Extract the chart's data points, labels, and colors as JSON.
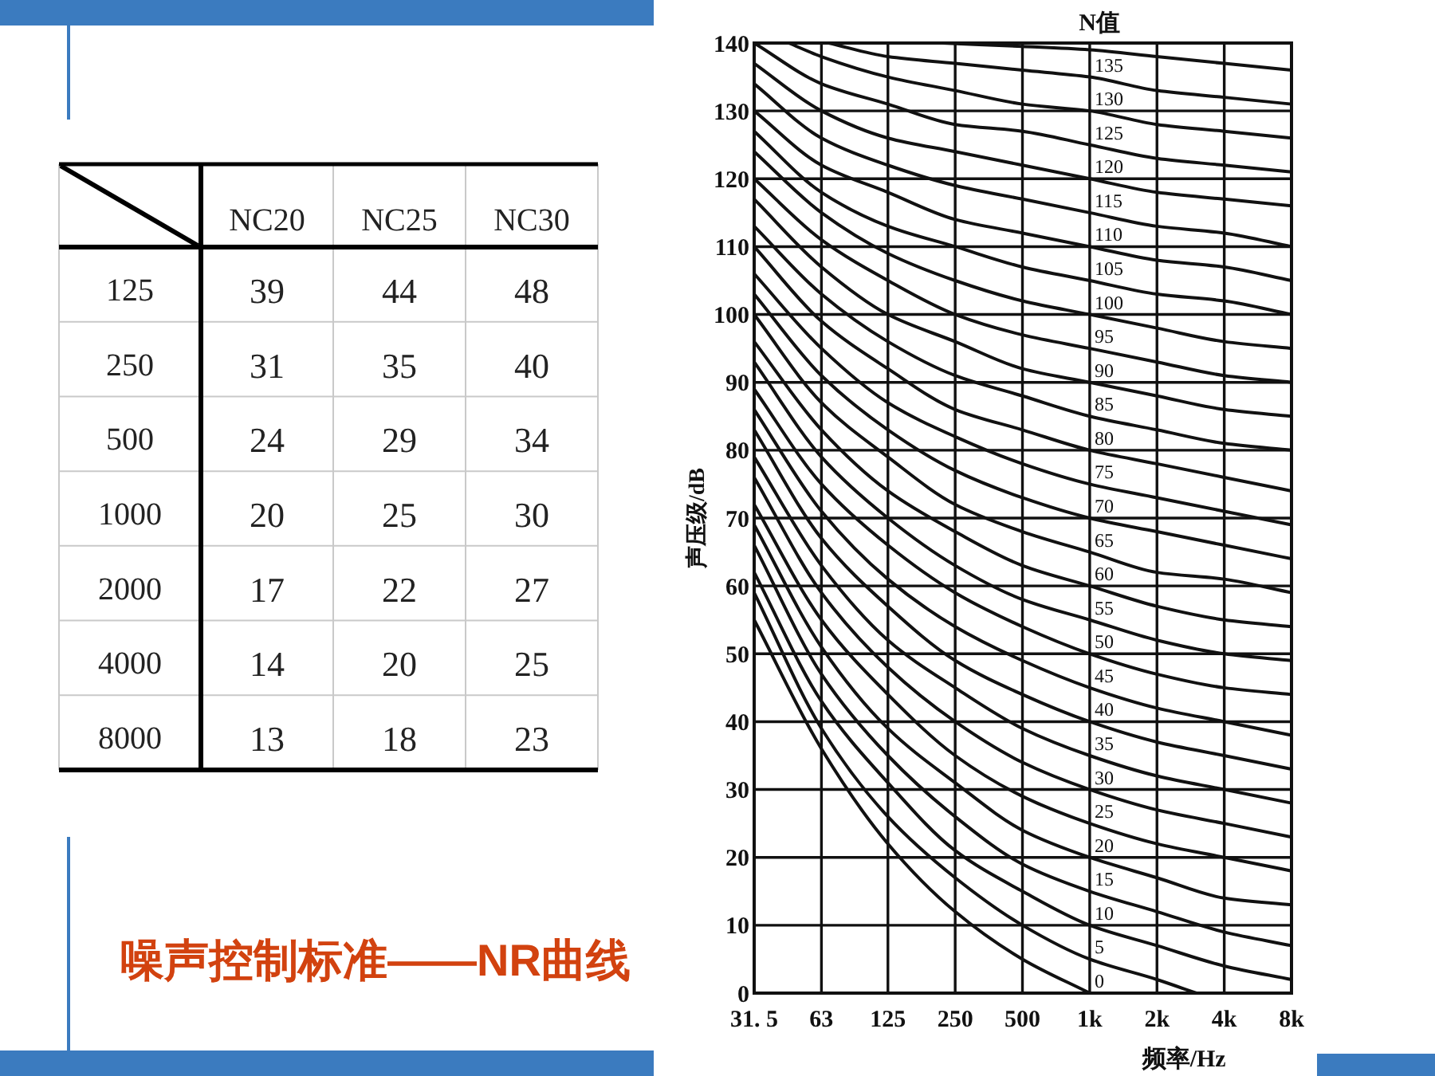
{
  "chart_data": [
    {
      "type": "heatmap",
      "title": "噪声控制标准——NR曲线",
      "data_labels": true,
      "categories": [
        "NC20",
        "NC25",
        "NC30"
      ],
      "y_categories": [
        "125",
        "250",
        "500",
        "1000",
        "2000",
        "4000",
        "8000"
      ],
      "cells": [
        [
          39,
          44,
          48
        ],
        [
          31,
          35,
          40
        ],
        [
          24,
          29,
          34
        ],
        [
          20,
          25,
          30
        ],
        [
          17,
          22,
          27
        ],
        [
          14,
          20,
          25
        ],
        [
          13,
          18,
          23
        ]
      ]
    },
    {
      "type": "line",
      "xlabel": "频率/Hz",
      "ylabel": "声压级/dB",
      "legend_title": "N值",
      "log": "x",
      "grid": true,
      "line_style": "solid",
      "xlim": [
        31.5,
        8000
      ],
      "xticks": [
        {
          "value": 31.5,
          "label": "31. 5"
        },
        63,
        125,
        250,
        500,
        {
          "value": 1000,
          "label": "1k"
        },
        {
          "value": 2000,
          "label": "2k"
        },
        {
          "value": 4000,
          "label": "4k"
        },
        {
          "value": 8000,
          "label": "8k"
        }
      ],
      "ylim": [
        0,
        140
      ],
      "yticks": [
        0,
        10,
        20,
        30,
        40,
        50,
        60,
        70,
        80,
        90,
        100,
        110,
        120,
        130,
        140
      ],
      "x": [
        31.5,
        63,
        125,
        250,
        500,
        1000,
        2000,
        4000,
        8000
      ],
      "series": [
        {
          "name": "0",
          "color": "#111111",
          "x": [
            31.5,
            63,
            125,
            250,
            500,
            1000
          ],
          "values": [
            55,
            36,
            22,
            12,
            5,
            0
          ]
        },
        {
          "name": "5",
          "color": "#111111",
          "x": [
            31.5,
            63,
            125,
            250,
            500,
            1000,
            2000,
            3000
          ],
          "values": [
            59,
            39,
            26,
            17,
            10,
            5,
            2,
            0
          ]
        },
        {
          "name": "10",
          "color": "#111111",
          "values": [
            62,
            43,
            31,
            21,
            15,
            10,
            7,
            4,
            2
          ]
        },
        {
          "name": "15",
          "color": "#111111",
          "values": [
            66,
            47,
            35,
            26,
            19,
            15,
            12,
            9,
            7
          ]
        },
        {
          "name": "20",
          "color": "#111111",
          "values": [
            69,
            51,
            39,
            31,
            24,
            20,
            17,
            14,
            13
          ]
        },
        {
          "name": "25",
          "color": "#111111",
          "values": [
            72,
            55,
            44,
            35,
            29,
            25,
            22,
            20,
            18
          ]
        },
        {
          "name": "30",
          "color": "#111111",
          "values": [
            76,
            59,
            48,
            40,
            34,
            30,
            27,
            25,
            23
          ]
        },
        {
          "name": "35",
          "color": "#111111",
          "values": [
            79,
            63,
            52,
            45,
            39,
            35,
            32,
            30,
            28
          ]
        },
        {
          "name": "40",
          "color": "#111111",
          "values": [
            83,
            67,
            57,
            49,
            44,
            40,
            37,
            35,
            33
          ]
        },
        {
          "name": "45",
          "color": "#111111",
          "values": [
            86,
            71,
            61,
            54,
            49,
            45,
            42,
            40,
            38
          ]
        },
        {
          "name": "50",
          "color": "#111111",
          "values": [
            89,
            75,
            66,
            59,
            54,
            50,
            47,
            45,
            44
          ]
        },
        {
          "name": "55",
          "color": "#111111",
          "values": [
            93,
            79,
            70,
            63,
            58,
            55,
            52,
            50,
            49
          ]
        },
        {
          "name": "60",
          "color": "#111111",
          "values": [
            96,
            83,
            74,
            68,
            63,
            60,
            57,
            55,
            54
          ]
        },
        {
          "name": "65",
          "color": "#111111",
          "values": [
            100,
            87,
            79,
            72,
            68,
            65,
            62,
            61,
            59
          ]
        },
        {
          "name": "70",
          "color": "#111111",
          "values": [
            103,
            91,
            83,
            77,
            73,
            70,
            68,
            66,
            64
          ]
        },
        {
          "name": "75",
          "color": "#111111",
          "values": [
            106,
            95,
            87,
            82,
            78,
            75,
            73,
            71,
            69
          ]
        },
        {
          "name": "80",
          "color": "#111111",
          "values": [
            110,
            99,
            92,
            86,
            83,
            80,
            78,
            76,
            74
          ]
        },
        {
          "name": "85",
          "color": "#111111",
          "values": [
            113,
            103,
            96,
            91,
            88,
            85,
            83,
            81,
            80
          ]
        },
        {
          "name": "90",
          "color": "#111111",
          "values": [
            117,
            107,
            100,
            96,
            92,
            90,
            88,
            86,
            85
          ]
        },
        {
          "name": "95",
          "color": "#111111",
          "values": [
            120,
            111,
            105,
            100,
            97,
            95,
            93,
            91,
            90
          ]
        },
        {
          "name": "100",
          "color": "#111111",
          "values": [
            124,
            115,
            109,
            105,
            102,
            100,
            98,
            96,
            95
          ]
        },
        {
          "name": "105",
          "color": "#111111",
          "values": [
            127,
            118,
            113,
            110,
            107,
            105,
            103,
            102,
            100
          ]
        },
        {
          "name": "110",
          "color": "#111111",
          "values": [
            130,
            122,
            118,
            114,
            112,
            110,
            108,
            107,
            105
          ]
        },
        {
          "name": "115",
          "color": "#111111",
          "values": [
            134,
            126,
            122,
            119,
            117,
            115,
            113,
            112,
            110
          ]
        },
        {
          "name": "120",
          "color": "#111111",
          "values": [
            137,
            130,
            126,
            124,
            122,
            120,
            118,
            117,
            116
          ]
        },
        {
          "name": "125",
          "color": "#111111",
          "values": [
            140,
            134,
            131,
            128,
            127,
            125,
            123,
            122,
            121
          ]
        },
        {
          "name": "130",
          "color": "#111111",
          "x": [
            45,
            63,
            125,
            250,
            500,
            1000,
            2000,
            4000,
            8000
          ],
          "values": [
            140,
            138,
            135,
            133,
            131,
            130,
            128,
            127,
            126
          ]
        },
        {
          "name": "135",
          "color": "#111111",
          "x": [
            68,
            125,
            250,
            500,
            1000,
            2000,
            4000,
            8000
          ],
          "values": [
            140,
            138,
            137,
            136,
            135,
            133,
            132,
            131
          ]
        },
        {
          "color": "#111111",
          "x": [
            220,
            500,
            1000,
            2000,
            4000,
            8000
          ],
          "values": [
            140,
            139.5,
            139,
            138,
            137,
            136
          ]
        }
      ]
    }
  ]
}
